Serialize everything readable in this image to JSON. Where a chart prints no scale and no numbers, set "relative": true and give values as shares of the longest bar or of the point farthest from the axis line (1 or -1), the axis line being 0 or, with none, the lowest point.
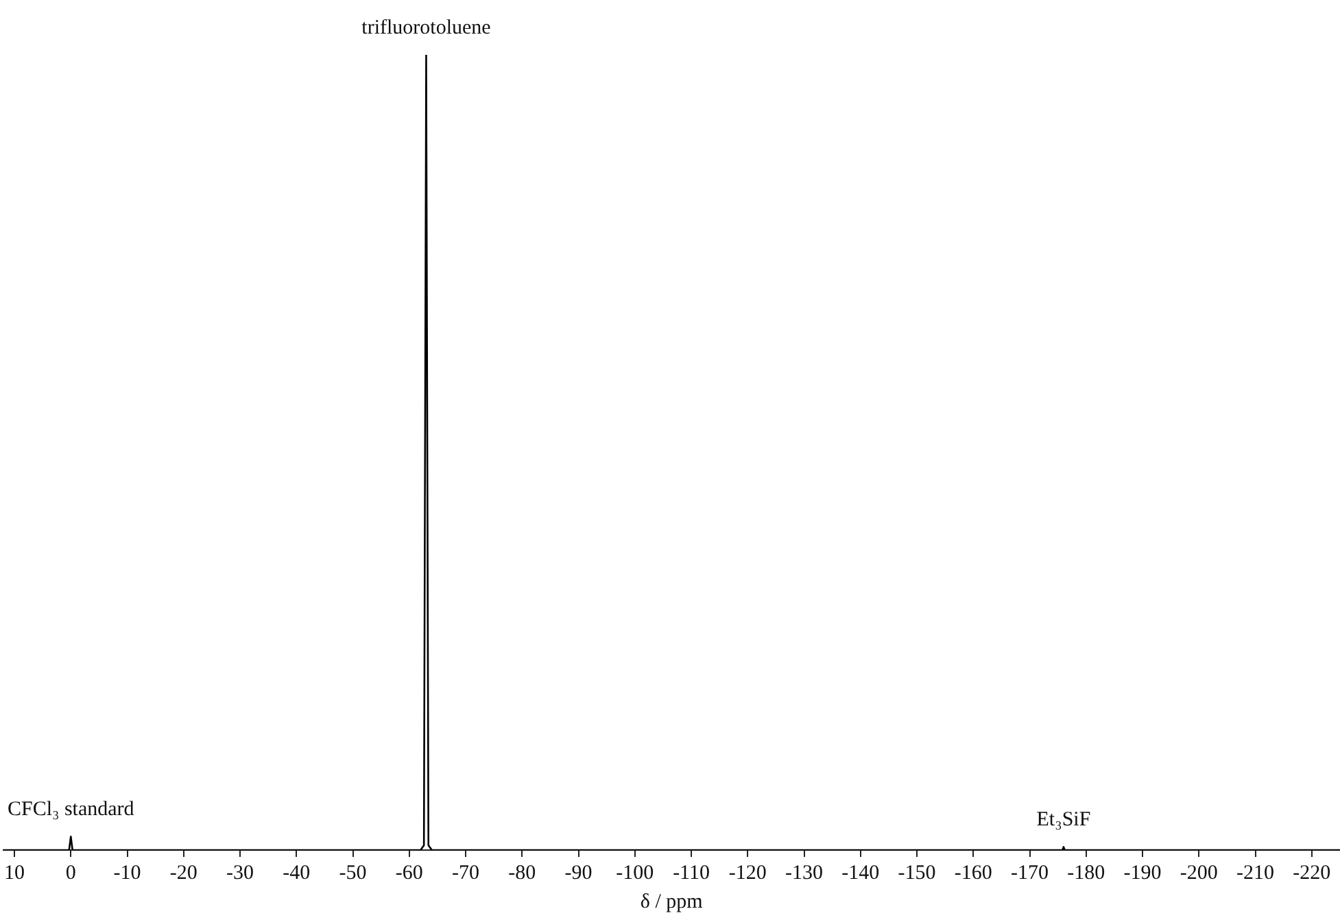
{
  "chart_data": {
    "type": "line",
    "relative": true,
    "xlabel": "δ / ppm",
    "xlim": [
      12,
      -225
    ],
    "xticks": [
      10,
      0,
      -10,
      -20,
      -30,
      -40,
      -50,
      -60,
      -70,
      -80,
      -90,
      -100,
      -110,
      -120,
      -130,
      -140,
      -150,
      -160,
      -170,
      -180,
      -190,
      -200,
      -210,
      -220
    ],
    "series": [
      {
        "color": "#000000",
        "x": [
          12,
          1,
          0.3,
          0,
          -0.3,
          -1,
          -62,
          -62.6,
          -63,
          -63.4,
          -64,
          -175,
          -175.8,
          -176,
          -176.2,
          -177,
          -225
        ],
        "values": [
          0,
          0,
          0,
          0.017,
          0,
          0,
          0,
          0.006,
          1,
          0.006,
          0,
          0,
          0,
          0.004,
          0,
          0,
          0
        ]
      }
    ],
    "annotations": [
      {
        "text": "trifluorotoluene",
        "x": -63,
        "y": 1
      },
      {
        "text": "CFCl₃ standard",
        "x": 0,
        "y": 0.017
      },
      {
        "text": "Et₃SiF",
        "x": -176,
        "y": 0.004
      }
    ],
    "marker": "none",
    "line_style": "solid",
    "grid": false,
    "legend": false
  }
}
